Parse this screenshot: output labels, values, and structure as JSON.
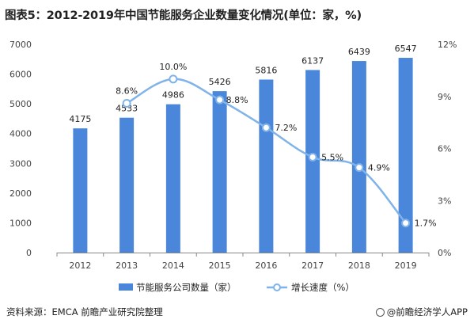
{
  "title": "图表5：2012-2019年中国节能服务企业数量变化情况(单位：家，%)",
  "source": "资料来源：EMCA 前瞻产业研究院整理",
  "brand": "@前瞻经济学人APP",
  "colors": {
    "bar": "#4a86d9",
    "line": "#7fb3ea",
    "axis": "#888888",
    "text": "#222222"
  },
  "chart_data": {
    "type": "bar",
    "categories": [
      "2012",
      "2013",
      "2014",
      "2015",
      "2016",
      "2017",
      "2018",
      "2019"
    ],
    "series": [
      {
        "name": "节能服务公司数量（家）",
        "type": "bar",
        "axis": "left",
        "values": [
          4175,
          4533,
          4986,
          5426,
          5816,
          6137,
          6439,
          6547
        ]
      },
      {
        "name": "增长速度（%）",
        "type": "line",
        "axis": "right",
        "values": [
          null,
          8.6,
          10.0,
          8.8,
          7.2,
          5.5,
          4.9,
          1.7
        ]
      }
    ],
    "bar_labels": [
      "4175",
      "4533",
      "4986",
      "5426",
      "5816",
      "6137",
      "6439",
      "6547"
    ],
    "line_labels": [
      "",
      "8.6%",
      "10.0%",
      "8.8%",
      "7.2%",
      "5.5%",
      "4.9%",
      "1.7%"
    ],
    "y_left": {
      "min": 0,
      "max": 7000,
      "ticks": [
        "0",
        "1000",
        "2000",
        "3000",
        "4000",
        "5000",
        "6000",
        "7000"
      ]
    },
    "y_right": {
      "min": 0,
      "max": 12,
      "ticks": [
        "0%",
        "3%",
        "6%",
        "9%",
        "12%"
      ]
    },
    "legend_position": "bottom",
    "grid": false
  }
}
